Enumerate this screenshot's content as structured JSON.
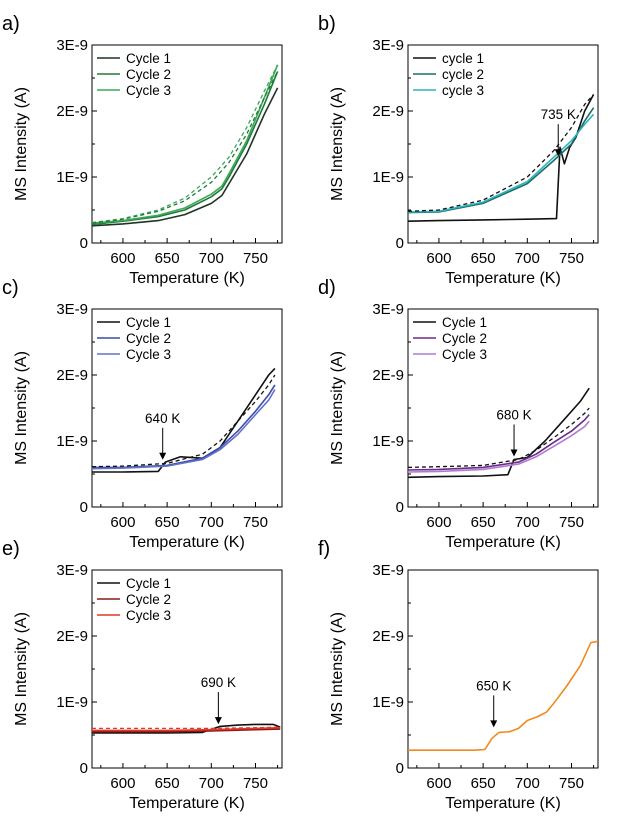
{
  "chart_data": [
    {
      "panel_label": "a)",
      "type": "line",
      "xlabel": "Temperature (K)",
      "ylabel": "MS Intensity (A)",
      "xlim": [
        565,
        780
      ],
      "ylim": [
        0,
        3e-09
      ],
      "xticks": [
        600,
        650,
        700,
        750
      ],
      "xtick_labels": [
        "600",
        "650",
        "700",
        "750"
      ],
      "yticks": [
        0,
        1e-09,
        2e-09,
        3e-09
      ],
      "ytick_labels": [
        "0",
        "1E-9",
        "2E-9",
        "3E-9"
      ],
      "legend_position": "top-left",
      "annotation": null,
      "series": [
        {
          "name": "Cycle 1",
          "color": "#1f3524",
          "dash": false,
          "x": [
            565,
            600,
            640,
            670,
            700,
            712,
            720,
            740,
            760,
            775
          ],
          "y": [
            2.6e-10,
            2.9e-10,
            3.4e-10,
            4.3e-10,
            6e-10,
            7.2e-10,
            9e-10,
            1.35e-09,
            1.95e-09,
            2.35e-09
          ]
        },
        {
          "name": "Cycle 2",
          "color": "#207a3c",
          "dash": false,
          "x": [
            565,
            600,
            640,
            670,
            700,
            712,
            720,
            740,
            760,
            775
          ],
          "y": [
            2.8e-10,
            3.3e-10,
            4e-10,
            5e-10,
            7e-10,
            8.2e-10,
            1e-09,
            1.5e-09,
            2.1e-09,
            2.6e-09
          ]
        },
        {
          "name": "Cycle 3",
          "color": "#3aaa55",
          "dash": false,
          "x": [
            565,
            600,
            640,
            670,
            700,
            712,
            720,
            740,
            760,
            775
          ],
          "y": [
            3e-10,
            3.4e-10,
            4.2e-10,
            5.3e-10,
            7.4e-10,
            8.6e-10,
            1.05e-09,
            1.55e-09,
            2.2e-09,
            2.7e-09
          ]
        },
        {
          "color": "#3aaa55",
          "dash": true,
          "x": [
            565,
            600,
            640,
            670,
            700,
            720,
            740,
            760,
            775
          ],
          "y": [
            3.1e-10,
            3.7e-10,
            5e-10,
            6.8e-10,
            1e-09,
            1.3e-09,
            1.75e-09,
            2.3e-09,
            2.7e-09
          ]
        },
        {
          "color": "#207a3c",
          "dash": true,
          "x": [
            565,
            600,
            640,
            670,
            700,
            720,
            740,
            760,
            775
          ],
          "y": [
            3e-10,
            3.6e-10,
            4.8e-10,
            6.4e-10,
            9.2e-10,
            1.22e-09,
            1.65e-09,
            2.2e-09,
            2.6e-09
          ]
        }
      ]
    },
    {
      "panel_label": "b)",
      "type": "line",
      "xlabel": "Temperature (K)",
      "ylabel": "MS Intensity (A)",
      "xlim": [
        565,
        780
      ],
      "ylim": [
        0,
        3e-09
      ],
      "xticks": [
        600,
        650,
        700,
        750
      ],
      "xtick_labels": [
        "600",
        "650",
        "700",
        "750"
      ],
      "yticks": [
        0,
        1e-09,
        2e-09,
        3e-09
      ],
      "ytick_labels": [
        "0",
        "1E-9",
        "2E-9",
        "3E-9"
      ],
      "legend_position": "top-left",
      "annotation": {
        "text": "735 K",
        "x": 735,
        "y": 1.3e-09
      },
      "series": [
        {
          "name": "cycle 1",
          "color": "#111111",
          "dash": false,
          "x": [
            565,
            600,
            650,
            700,
            733,
            737,
            742,
            748,
            755,
            765,
            775
          ],
          "y": [
            3.3e-10,
            3.4e-10,
            3.5e-10,
            3.6e-10,
            3.7e-10,
            1.45e-09,
            1.2e-09,
            1.45e-09,
            1.6e-09,
            2e-09,
            2.25e-09
          ]
        },
        {
          "name": "cycle 2",
          "color": "#1a6e6a",
          "dash": false,
          "x": [
            565,
            600,
            650,
            700,
            730,
            750,
            765,
            775
          ],
          "y": [
            4.6e-10,
            4.7e-10,
            6e-10,
            9e-10,
            1.25e-09,
            1.5e-09,
            1.85e-09,
            2.05e-09
          ]
        },
        {
          "name": "cycle 3",
          "color": "#2fb3c0",
          "dash": false,
          "x": [
            565,
            600,
            650,
            700,
            730,
            750,
            765,
            775
          ],
          "y": [
            4.7e-10,
            4.8e-10,
            6.2e-10,
            9.3e-10,
            1.3e-09,
            1.55e-09,
            1.8e-09,
            1.95e-09
          ]
        },
        {
          "color": "#111111",
          "dash": true,
          "x": [
            565,
            600,
            650,
            700,
            730,
            750,
            765,
            775
          ],
          "y": [
            4.8e-10,
            5e-10,
            6.5e-10,
            1e-09,
            1.4e-09,
            1.75e-09,
            2.1e-09,
            2.25e-09
          ]
        }
      ]
    },
    {
      "panel_label": "c)",
      "type": "line",
      "xlabel": "Temperature (K)",
      "ylabel": "MS Intensity (A)",
      "xlim": [
        565,
        780
      ],
      "ylim": [
        0,
        3e-09
      ],
      "xticks": [
        600,
        650,
        700,
        750
      ],
      "xtick_labels": [
        "600",
        "650",
        "700",
        "750"
      ],
      "yticks": [
        0,
        1e-09,
        2e-09,
        3e-09
      ],
      "ytick_labels": [
        "0",
        "1E-9",
        "2E-9",
        "3E-9"
      ],
      "legend_position": "top-left",
      "annotation": {
        "text": "640 K",
        "x": 645,
        "y": 7e-10
      },
      "series": [
        {
          "name": "Cycle 1",
          "color": "#111111",
          "dash": false,
          "x": [
            565,
            600,
            640,
            648,
            665,
            690,
            710,
            730,
            750,
            765,
            772
          ],
          "y": [
            5.3e-10,
            5.3e-10,
            5.4e-10,
            6.8e-10,
            7.6e-10,
            7.4e-10,
            9e-10,
            1.3e-09,
            1.7e-09,
            2e-09,
            2.1e-09
          ]
        },
        {
          "name": "Cycle 2",
          "color": "#3a4ca8",
          "dash": false,
          "x": [
            565,
            600,
            650,
            690,
            710,
            730,
            750,
            765,
            772
          ],
          "y": [
            6e-10,
            6e-10,
            6.3e-10,
            7.4e-10,
            9e-10,
            1.15e-09,
            1.45e-09,
            1.7e-09,
            1.85e-09
          ]
        },
        {
          "name": "Cycle 3",
          "color": "#6272c8",
          "dash": false,
          "x": [
            565,
            600,
            650,
            690,
            710,
            730,
            750,
            765,
            772
          ],
          "y": [
            5.8e-10,
            5.9e-10,
            6.2e-10,
            7.2e-10,
            8.7e-10,
            1.1e-09,
            1.4e-09,
            1.62e-09,
            1.78e-09
          ]
        },
        {
          "color": "#111111",
          "dash": true,
          "x": [
            565,
            600,
            650,
            690,
            710,
            730,
            750,
            765,
            772
          ],
          "y": [
            6.1e-10,
            6.2e-10,
            6.6e-10,
            8e-10,
            1e-09,
            1.3e-09,
            1.6e-09,
            1.85e-09,
            2e-09
          ]
        }
      ]
    },
    {
      "panel_label": "d)",
      "type": "line",
      "xlabel": "Temperature (K)",
      "ylabel": "MS Intensity (A)",
      "xlim": [
        565,
        780
      ],
      "ylim": [
        0,
        3e-09
      ],
      "xticks": [
        600,
        650,
        700,
        750
      ],
      "xtick_labels": [
        "600",
        "650",
        "700",
        "750"
      ],
      "yticks": [
        0,
        1e-09,
        2e-09,
        3e-09
      ],
      "ytick_labels": [
        "0",
        "1E-9",
        "2E-9",
        "3E-9"
      ],
      "legend_position": "top-left",
      "annotation": {
        "text": "680 K",
        "x": 685,
        "y": 7.5e-10
      },
      "series": [
        {
          "name": "Cycle 1",
          "color": "#111111",
          "dash": false,
          "x": [
            565,
            600,
            650,
            678,
            685,
            700,
            720,
            740,
            760,
            770
          ],
          "y": [
            4.5e-10,
            4.6e-10,
            4.7e-10,
            4.9e-10,
            7.2e-10,
            7.5e-10,
            1e-09,
            1.3e-09,
            1.6e-09,
            1.8e-09
          ]
        },
        {
          "name": "Cycle 2",
          "color": "#6a2c8a",
          "dash": false,
          "x": [
            565,
            600,
            650,
            690,
            710,
            730,
            750,
            765,
            770
          ],
          "y": [
            5.6e-10,
            5.7e-10,
            6e-10,
            6.8e-10,
            8e-10,
            9.8e-10,
            1.15e-09,
            1.32e-09,
            1.4e-09
          ]
        },
        {
          "name": "Cycle 3",
          "color": "#b07ad0",
          "dash": false,
          "x": [
            565,
            600,
            650,
            690,
            710,
            730,
            750,
            765,
            770
          ],
          "y": [
            5.3e-10,
            5.4e-10,
            5.7e-10,
            6.5e-10,
            7.6e-10,
            9.2e-10,
            1.08e-09,
            1.22e-09,
            1.3e-09
          ]
        },
        {
          "color": "#111111",
          "dash": true,
          "x": [
            565,
            600,
            650,
            690,
            710,
            730,
            750,
            765,
            770
          ],
          "y": [
            6e-10,
            6.1e-10,
            6.3e-10,
            7.2e-10,
            8.6e-10,
            1.05e-09,
            1.25e-09,
            1.42e-09,
            1.5e-09
          ]
        }
      ]
    },
    {
      "panel_label": "e)",
      "type": "line",
      "xlabel": "Temperature (K)",
      "ylabel": "MS Intensity (A)",
      "xlim": [
        565,
        780
      ],
      "ylim": [
        0,
        3e-09
      ],
      "xticks": [
        600,
        650,
        700,
        750
      ],
      "xtick_labels": [
        "600",
        "650",
        "700",
        "750"
      ],
      "yticks": [
        0,
        1e-09,
        2e-09,
        3e-09
      ],
      "ytick_labels": [
        "0",
        "1E-9",
        "2E-9",
        "3E-9"
      ],
      "legend_position": "top-left",
      "annotation": {
        "text": "690 K",
        "x": 708,
        "y": 6.5e-10
      },
      "series": [
        {
          "name": "Cycle 1",
          "color": "#111111",
          "dash": false,
          "x": [
            565,
            600,
            650,
            690,
            710,
            730,
            750,
            770,
            778
          ],
          "y": [
            5.3e-10,
            5.3e-10,
            5.3e-10,
            5.4e-10,
            6.3e-10,
            6.5e-10,
            6.6e-10,
            6.6e-10,
            6.2e-10
          ]
        },
        {
          "name": "Cycle 2",
          "color": "#8a1a14",
          "dash": false,
          "x": [
            565,
            600,
            650,
            700,
            750,
            778
          ],
          "y": [
            5.5e-10,
            5.5e-10,
            5.5e-10,
            5.6e-10,
            5.8e-10,
            5.9e-10
          ]
        },
        {
          "name": "Cycle 3",
          "color": "#e0382a",
          "dash": false,
          "x": [
            565,
            600,
            650,
            700,
            750,
            778
          ],
          "y": [
            5.7e-10,
            5.7e-10,
            5.7e-10,
            5.8e-10,
            6e-10,
            6.1e-10
          ]
        },
        {
          "color": "#e0382a",
          "dash": true,
          "x": [
            565,
            600,
            650,
            700,
            750,
            778
          ],
          "y": [
            6e-10,
            6e-10,
            6e-10,
            6e-10,
            6.1e-10,
            6.2e-10
          ]
        }
      ]
    },
    {
      "panel_label": "f)",
      "type": "line",
      "xlabel": "Temperature (K)",
      "ylabel": "MS Intensity (A)",
      "xlim": [
        565,
        780
      ],
      "ylim": [
        0,
        3e-09
      ],
      "xticks": [
        600,
        650,
        700,
        750
      ],
      "xtick_labels": [
        "600",
        "650",
        "700",
        "750"
      ],
      "yticks": [
        0,
        1e-09,
        2e-09,
        3e-09
      ],
      "ytick_labels": [
        "0",
        "1E-9",
        "2E-9",
        "3E-9"
      ],
      "legend_position": null,
      "annotation": {
        "text": "650 K",
        "x": 662,
        "y": 6e-10
      },
      "series": [
        {
          "color": "#f08a1e",
          "dash": false,
          "x": [
            565,
            600,
            640,
            652,
            660,
            668,
            680,
            690,
            700,
            712,
            722,
            730,
            745,
            760,
            772,
            780
          ],
          "y": [
            2.7e-10,
            2.7e-10,
            2.7e-10,
            2.8e-10,
            4.5e-10,
            5.4e-10,
            5.5e-10,
            6e-10,
            7.2e-10,
            7.8e-10,
            8.5e-10,
            9.8e-10,
            1.25e-09,
            1.55e-09,
            1.9e-09,
            1.92e-09
          ]
        }
      ]
    }
  ]
}
